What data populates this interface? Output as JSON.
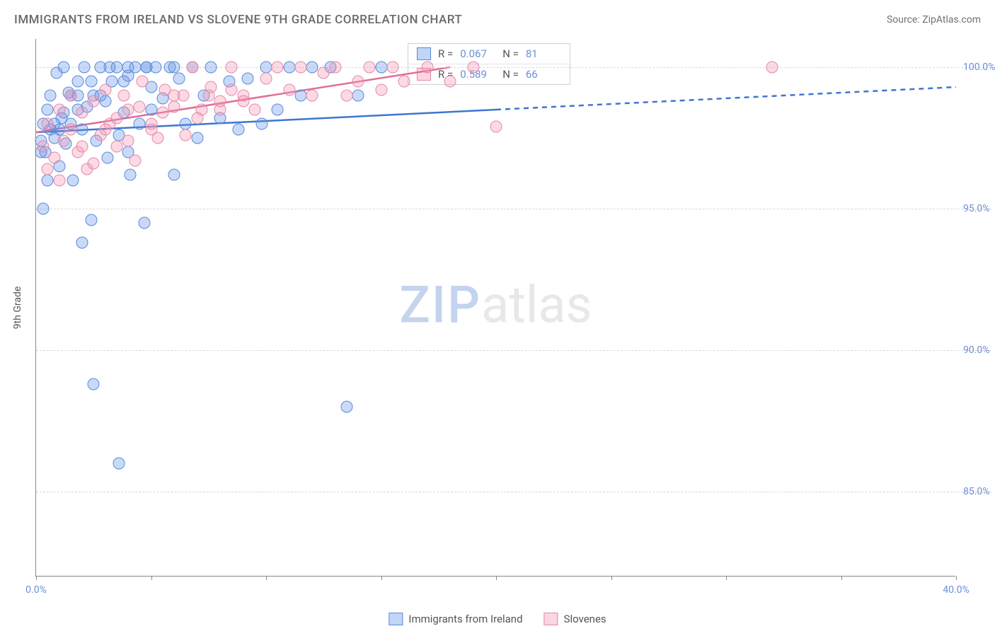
{
  "title": "IMMIGRANTS FROM IRELAND VS SLOVENE 9TH GRADE CORRELATION CHART",
  "source": "Source: ZipAtlas.com",
  "ylabel": "9th Grade",
  "watermark": {
    "part1": "ZIP",
    "part2": "atlas"
  },
  "chart": {
    "type": "scatter",
    "xlim": [
      0,
      40
    ],
    "ylim": [
      82,
      101
    ],
    "y_ticks": [
      85,
      90,
      95,
      100
    ],
    "y_tick_labels": [
      "85.0%",
      "90.0%",
      "95.0%",
      "100.0%"
    ],
    "x_tick_positions": [
      0,
      5,
      10,
      15,
      20,
      25,
      30,
      35,
      40
    ],
    "x_labels_shown": {
      "0": "0.0%",
      "40": "40.0%"
    },
    "background_color": "#ffffff",
    "grid_color": "#d8d8d8",
    "axis_color": "#888888",
    "label_color": "#6b8fd6",
    "point_radius": 8.5,
    "series": [
      {
        "name": "Immigrants from Ireland",
        "color_fill": "rgba(100,150,235,0.35)",
        "color_stroke": "#5a8ad6",
        "R": "0.067",
        "N": "81",
        "trend": {
          "x1": 0,
          "y1": 97.7,
          "x2": 20,
          "y2": 98.5,
          "x2_ext": 40,
          "y2_ext": 99.3,
          "stroke": "#3d76d1",
          "width": 2.5
        },
        "points": [
          [
            0.2,
            97.4
          ],
          [
            0.3,
            98.0
          ],
          [
            0.4,
            97.0
          ],
          [
            0.5,
            98.5
          ],
          [
            0.6,
            99.0
          ],
          [
            0.8,
            97.5
          ],
          [
            0.9,
            99.8
          ],
          [
            1.0,
            96.5
          ],
          [
            1.1,
            98.2
          ],
          [
            1.2,
            100.0
          ],
          [
            1.3,
            97.3
          ],
          [
            1.4,
            99.1
          ],
          [
            1.5,
            98.0
          ],
          [
            1.6,
            96.0
          ],
          [
            1.8,
            99.5
          ],
          [
            2.0,
            97.8
          ],
          [
            2.1,
            100.0
          ],
          [
            2.2,
            98.6
          ],
          [
            2.4,
            94.6
          ],
          [
            2.5,
            99.0
          ],
          [
            2.6,
            97.4
          ],
          [
            2.8,
            100.0
          ],
          [
            3.0,
            98.8
          ],
          [
            3.1,
            96.8
          ],
          [
            3.3,
            99.5
          ],
          [
            3.5,
            100.0
          ],
          [
            3.6,
            97.6
          ],
          [
            3.8,
            98.4
          ],
          [
            4.0,
            99.7
          ],
          [
            4.1,
            96.2
          ],
          [
            4.3,
            100.0
          ],
          [
            4.5,
            98.0
          ],
          [
            4.7,
            94.5
          ],
          [
            4.8,
            100.0
          ],
          [
            5.0,
            99.3
          ],
          [
            5.2,
            100.0
          ],
          [
            5.5,
            98.9
          ],
          [
            5.8,
            100.0
          ],
          [
            6.0,
            96.2
          ],
          [
            6.2,
            99.6
          ],
          [
            6.5,
            98.0
          ],
          [
            6.8,
            100.0
          ],
          [
            7.0,
            97.5
          ],
          [
            7.3,
            99.0
          ],
          [
            7.6,
            100.0
          ],
          [
            8.0,
            98.2
          ],
          [
            8.4,
            99.5
          ],
          [
            8.8,
            97.8
          ],
          [
            9.2,
            99.6
          ],
          [
            9.8,
            98.0
          ],
          [
            10.0,
            100.0
          ],
          [
            10.5,
            98.5
          ],
          [
            11.0,
            100.0
          ],
          [
            11.5,
            99.0
          ],
          [
            12.0,
            100.0
          ],
          [
            12.8,
            100.0
          ],
          [
            13.5,
            88.0
          ],
          [
            14.0,
            99.0
          ],
          [
            15.0,
            100.0
          ],
          [
            2.0,
            93.8
          ],
          [
            3.6,
            86.0
          ],
          [
            2.5,
            88.8
          ],
          [
            0.3,
            95.0
          ],
          [
            0.5,
            96.0
          ],
          [
            1.0,
            97.8
          ],
          [
            1.5,
            99.0
          ],
          [
            4.0,
            97.0
          ],
          [
            5.0,
            98.5
          ],
          [
            6.0,
            100.0
          ],
          [
            0.8,
            98.0
          ],
          [
            1.8,
            98.5
          ],
          [
            2.8,
            99.0
          ],
          [
            3.8,
            99.5
          ],
          [
            0.2,
            97.0
          ],
          [
            0.6,
            97.8
          ],
          [
            1.2,
            98.4
          ],
          [
            1.8,
            99.0
          ],
          [
            2.4,
            99.5
          ],
          [
            3.2,
            100.0
          ],
          [
            4.0,
            100.0
          ],
          [
            4.8,
            100.0
          ]
        ]
      },
      {
        "name": "Slovenes",
        "color_fill": "rgba(245,150,180,0.35)",
        "color_stroke": "#e28aa8",
        "R": "0.589",
        "N": "66",
        "trend": {
          "x1": 0,
          "y1": 97.7,
          "x2": 18,
          "y2": 100.0,
          "stroke": "#e06f98",
          "width": 2.5
        },
        "points": [
          [
            0.3,
            97.2
          ],
          [
            0.5,
            98.0
          ],
          [
            0.8,
            96.8
          ],
          [
            1.0,
            98.5
          ],
          [
            1.2,
            97.4
          ],
          [
            1.5,
            99.0
          ],
          [
            1.8,
            97.0
          ],
          [
            2.0,
            98.4
          ],
          [
            2.2,
            96.4
          ],
          [
            2.5,
            98.8
          ],
          [
            2.8,
            97.6
          ],
          [
            3.0,
            99.2
          ],
          [
            3.2,
            98.0
          ],
          [
            3.5,
            97.2
          ],
          [
            3.8,
            99.0
          ],
          [
            4.0,
            98.5
          ],
          [
            4.3,
            96.7
          ],
          [
            4.6,
            99.5
          ],
          [
            5.0,
            98.0
          ],
          [
            5.3,
            97.5
          ],
          [
            5.6,
            99.2
          ],
          [
            6.0,
            98.6
          ],
          [
            6.4,
            99.0
          ],
          [
            6.8,
            100.0
          ],
          [
            7.2,
            98.5
          ],
          [
            7.6,
            99.3
          ],
          [
            8.0,
            98.8
          ],
          [
            8.5,
            100.0
          ],
          [
            9.0,
            99.0
          ],
          [
            9.5,
            98.5
          ],
          [
            10.0,
            99.6
          ],
          [
            10.5,
            100.0
          ],
          [
            11.0,
            99.2
          ],
          [
            11.5,
            100.0
          ],
          [
            12.0,
            99.0
          ],
          [
            12.5,
            99.8
          ],
          [
            13.0,
            100.0
          ],
          [
            13.5,
            99.0
          ],
          [
            14.0,
            99.5
          ],
          [
            14.5,
            100.0
          ],
          [
            15.0,
            99.2
          ],
          [
            15.5,
            100.0
          ],
          [
            16.0,
            99.5
          ],
          [
            17.0,
            100.0
          ],
          [
            18.0,
            99.5
          ],
          [
            19.0,
            100.0
          ],
          [
            20.0,
            97.9
          ],
          [
            32.0,
            100.0
          ],
          [
            0.5,
            96.4
          ],
          [
            1.0,
            96.0
          ],
          [
            1.5,
            97.8
          ],
          [
            2.0,
            97.2
          ],
          [
            2.5,
            96.6
          ],
          [
            3.0,
            97.8
          ],
          [
            3.5,
            98.2
          ],
          [
            4.0,
            97.4
          ],
          [
            4.5,
            98.6
          ],
          [
            5.0,
            97.8
          ],
          [
            5.5,
            98.4
          ],
          [
            6.0,
            99.0
          ],
          [
            6.5,
            97.6
          ],
          [
            7.0,
            98.2
          ],
          [
            7.5,
            99.0
          ],
          [
            8.0,
            98.5
          ],
          [
            8.5,
            99.2
          ],
          [
            9.0,
            98.8
          ]
        ]
      }
    ]
  },
  "stats_box": {
    "r_label": "R =",
    "n_label": "N ="
  },
  "bottom_legend": [
    {
      "label": "Immigrants from Ireland",
      "swatch": "blue"
    },
    {
      "label": "Slovenes",
      "swatch": "pink"
    }
  ]
}
